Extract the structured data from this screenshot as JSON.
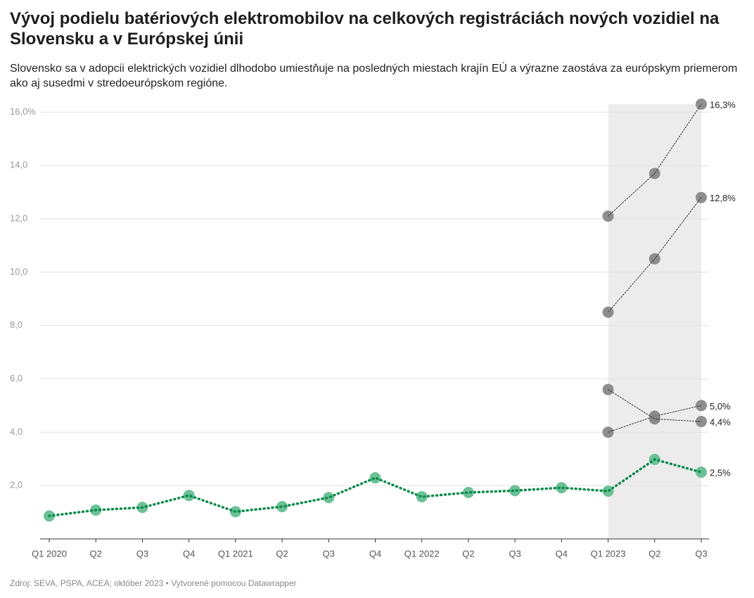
{
  "chart_data": {
    "type": "line",
    "title": "Vývoj podielu batériových elektromobilov na celkových registráciách nových vozidiel na Slovensku a v Európskej únii",
    "subtitle": "Slovensko sa v adopcii elektrických vozidiel dlhodobo umiestňuje na posledných miestach krajín EÚ a výrazne zaostáva za európskym priemerom ako aj susedmi v stredoeurópskom regióne.",
    "source": "Zdroj: SEVA, PSPA, ACEA; október 2023 • Vytvorené pomocou Datawrapper",
    "categories": [
      "Q1 2020",
      "Q2",
      "Q3",
      "Q4",
      "Q1 2021",
      "Q2",
      "Q3",
      "Q4",
      "Q1 2022",
      "Q2",
      "Q3",
      "Q4",
      "Q1 2023",
      "Q2",
      "Q3"
    ],
    "ylim": [
      0,
      16.3
    ],
    "yticks": [
      {
        "value": 2,
        "label": "2,0"
      },
      {
        "value": 4,
        "label": "4,0"
      },
      {
        "value": 6,
        "label": "6,0"
      },
      {
        "value": 8,
        "label": "8,0"
      },
      {
        "value": 10,
        "label": "10,0"
      },
      {
        "value": 12,
        "label": "12,0"
      },
      {
        "value": 14,
        "label": "14,0"
      },
      {
        "value": 16,
        "label": "16,0%"
      }
    ],
    "grid": true,
    "series": [
      {
        "color": "#888888",
        "values": [
          null,
          null,
          null,
          null,
          null,
          null,
          null,
          null,
          null,
          null,
          null,
          null,
          12.1,
          13.7,
          16.3
        ],
        "value_labels": [
          null,
          null,
          null,
          null,
          null,
          null,
          null,
          null,
          null,
          null,
          null,
          null,
          null,
          null,
          "16,3%"
        ]
      },
      {
        "color": "#888888",
        "values": [
          null,
          null,
          null,
          null,
          null,
          null,
          null,
          null,
          null,
          null,
          null,
          null,
          8.5,
          10.5,
          12.8
        ],
        "value_labels": [
          null,
          null,
          null,
          null,
          null,
          null,
          null,
          null,
          null,
          null,
          null,
          null,
          null,
          null,
          "12,8%"
        ]
      },
      {
        "color": "#888888",
        "values": [
          null,
          null,
          null,
          null,
          null,
          null,
          null,
          null,
          null,
          null,
          null,
          null,
          4.0,
          4.6,
          5.0
        ],
        "value_labels": [
          null,
          null,
          null,
          null,
          null,
          null,
          null,
          null,
          null,
          null,
          null,
          null,
          null,
          null,
          "5,0%"
        ]
      },
      {
        "color": "#888888",
        "values": [
          null,
          null,
          null,
          null,
          null,
          null,
          null,
          null,
          null,
          null,
          null,
          null,
          5.6,
          4.5,
          4.4
        ],
        "value_labels": [
          null,
          null,
          null,
          null,
          null,
          null,
          null,
          null,
          null,
          null,
          null,
          null,
          null,
          null,
          "4,4%"
        ]
      },
      {
        "color": "#0a8a4a",
        "values": [
          0.86,
          1.08,
          1.18,
          1.63,
          1.02,
          1.21,
          1.55,
          2.29,
          1.58,
          1.74,
          1.81,
          1.92,
          1.79,
          2.98,
          2.5
        ],
        "value_labels": [
          null,
          null,
          null,
          null,
          null,
          null,
          null,
          null,
          null,
          null,
          null,
          null,
          null,
          null,
          "2,5%"
        ]
      }
    ]
  }
}
